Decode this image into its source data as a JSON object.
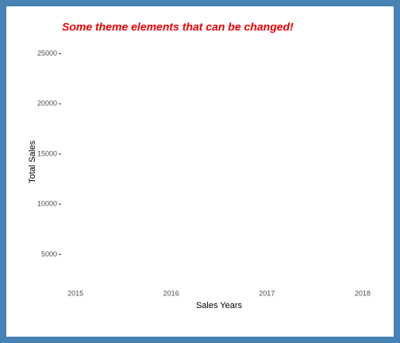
{
  "chart_data": {
    "type": "line",
    "title": "Some theme elements that can be changed!",
    "xlabel": "Sales Years",
    "ylabel": "Total Sales",
    "xlim": [
      2014.85,
      2018.15
    ],
    "xticks": [
      2015,
      2016,
      2017,
      2018
    ],
    "ylim": [
      2500,
      26000
    ],
    "yticks": [
      5000,
      10000,
      15000,
      20000,
      25000
    ],
    "series": [],
    "title_color": "#ee0000",
    "border_color": "#4682b4",
    "grid": false
  }
}
